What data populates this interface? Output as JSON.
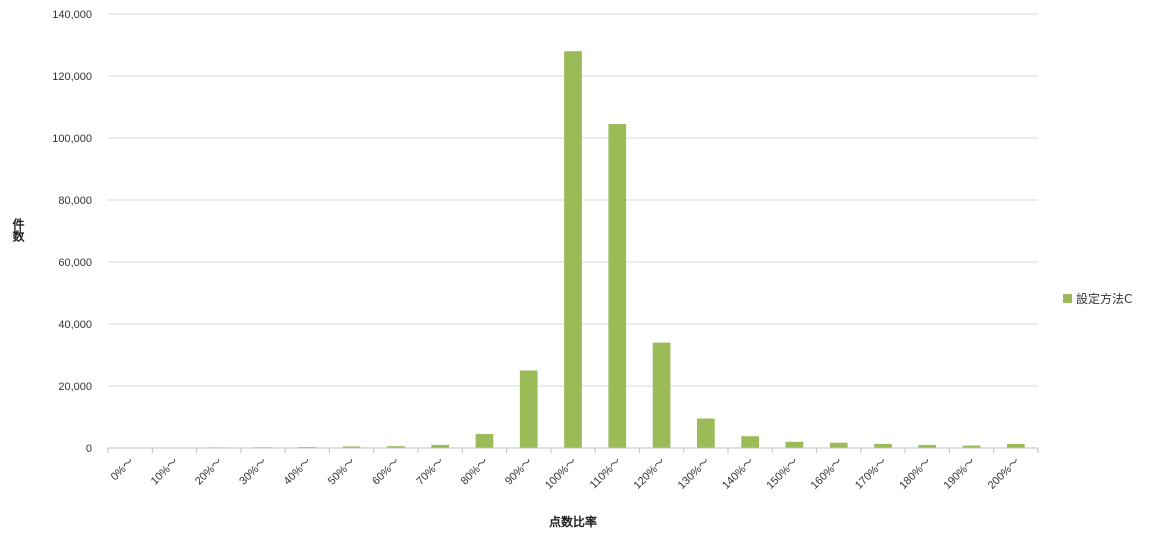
{
  "chart_data": {
    "type": "bar",
    "xlabel": "点数比率",
    "ylabel": "件数",
    "ylim": [
      0,
      140000
    ],
    "yticks": [
      "0",
      "20,000",
      "40,000",
      "60,000",
      "80,000",
      "100,000",
      "120,000",
      "140,000"
    ],
    "categories": [
      "0%～",
      "10%～",
      "20%～",
      "30%～",
      "40%～",
      "50%～",
      "60%～",
      "70%～",
      "80%～",
      "90%～",
      "100%～",
      "110%～",
      "120%～",
      "130%～",
      "140%～",
      "150%～",
      "160%～",
      "170%～",
      "180%～",
      "190%～",
      "200%～"
    ],
    "series": [
      {
        "name": "設定方法C",
        "color": "#9bbb59",
        "values": [
          50,
          100,
          200,
          250,
          300,
          500,
          600,
          1000,
          4500,
          25000,
          128000,
          104500,
          34000,
          9500,
          3800,
          2000,
          1700,
          1300,
          1000,
          800,
          1300
        ]
      }
    ],
    "grid": true,
    "legend_position": "right"
  }
}
